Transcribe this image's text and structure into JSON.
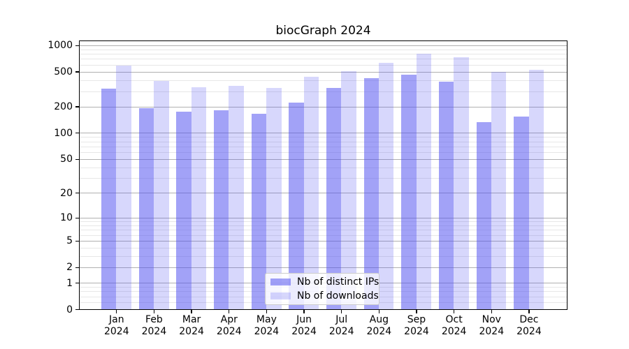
{
  "chart_data": {
    "type": "bar",
    "title": "biocGraph 2024",
    "categories": [
      "Jan",
      "Feb",
      "Mar",
      "Apr",
      "May",
      "Jun",
      "Jul",
      "Aug",
      "Sep",
      "Oct",
      "Nov",
      "Dec"
    ],
    "x_tick_second_line": "2024",
    "series": [
      {
        "name": "Nb of distinct IPs",
        "color": "rgba(80,80,240,0.53)",
        "values": [
          320,
          191,
          175,
          181,
          166,
          222,
          325,
          420,
          460,
          383,
          132,
          154
        ]
      },
      {
        "name": "Nb of downloads",
        "color": "rgba(80,80,240,0.23)",
        "values": [
          591,
          392,
          331,
          348,
          325,
          438,
          506,
          631,
          800,
          729,
          501,
          523
        ]
      }
    ],
    "y_axis": {
      "scale": "log1p",
      "ticks": [
        0,
        1,
        2,
        5,
        10,
        20,
        50,
        100,
        200,
        500,
        1000
      ],
      "max": 1120
    },
    "x_axis": {
      "tick_labels_line1": [
        "Jan",
        "Feb",
        "Mar",
        "Apr",
        "May",
        "Jun",
        "Jul",
        "Aug",
        "Sep",
        "Oct",
        "Nov",
        "Dec"
      ],
      "tick_labels_line2": "2024"
    },
    "legend": {
      "position": "lower center",
      "entries": [
        "Nb of distinct IPs",
        "Nb of downloads"
      ]
    },
    "grid": true,
    "grid_color_major": "#b0b0b0",
    "grid_color_minor": "#e7e7e7",
    "frame_color": "#000000",
    "background_color": "#ffffff"
  }
}
